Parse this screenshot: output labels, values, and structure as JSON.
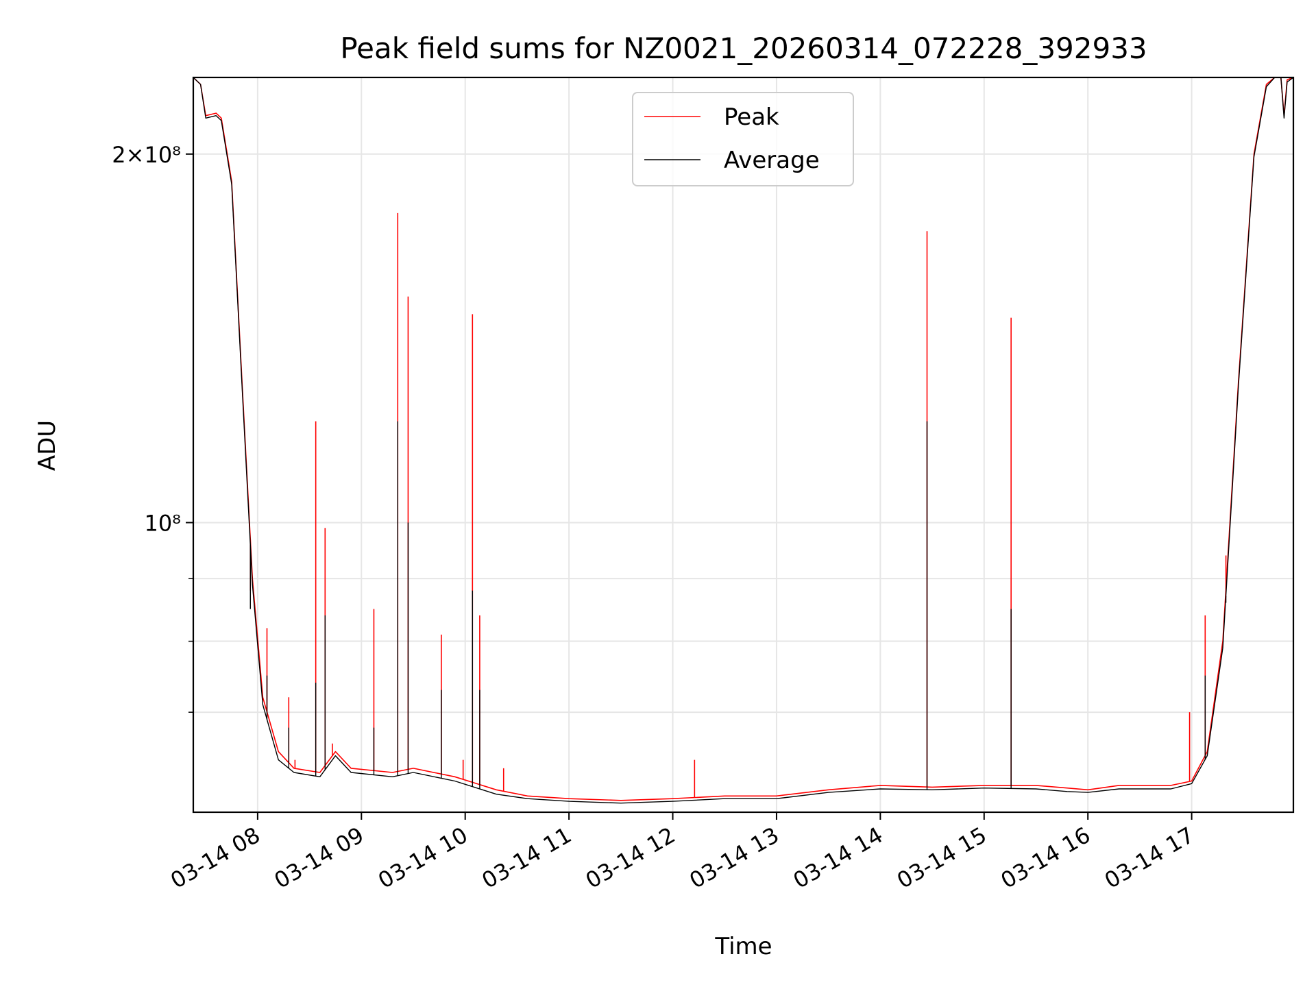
{
  "chart_data": {
    "type": "line",
    "title": "Peak field sums for NZ0021_20260314_072228_392933",
    "xlabel": "Time",
    "ylabel": "ADU",
    "y_scale": "log",
    "xlim_hours": [
      7.38,
      17.98
    ],
    "ylim": [
      58000000,
      231000000
    ],
    "grid": true,
    "legend_position": "upper center",
    "x_ticks": [
      {
        "hour": 8,
        "label": "03-14 08"
      },
      {
        "hour": 9,
        "label": "03-14 09"
      },
      {
        "hour": 10,
        "label": "03-14 10"
      },
      {
        "hour": 11,
        "label": "03-14 11"
      },
      {
        "hour": 12,
        "label": "03-14 12"
      },
      {
        "hour": 13,
        "label": "03-14 13"
      },
      {
        "hour": 14,
        "label": "03-14 14"
      },
      {
        "hour": 15,
        "label": "03-14 15"
      },
      {
        "hour": 16,
        "label": "03-14 16"
      },
      {
        "hour": 17,
        "label": "03-14 17"
      }
    ],
    "y_ticks_major": [
      {
        "value": 200000000,
        "label": "2×10⁸"
      },
      {
        "value": 100000000,
        "label": "10⁸"
      }
    ],
    "y_ticks_minor": [
      70000000,
      80000000,
      90000000
    ],
    "series": [
      {
        "name": "Peak",
        "color": "#ff0000",
        "baseline": [
          [
            7.38,
            231000000
          ],
          [
            7.45,
            228000000
          ],
          [
            7.5,
            215000000
          ],
          [
            7.6,
            216000000
          ],
          [
            7.65,
            214000000
          ],
          [
            7.75,
            190000000
          ],
          [
            7.85,
            130000000
          ],
          [
            7.95,
            90000000
          ],
          [
            8.05,
            72000000
          ],
          [
            8.2,
            65000000
          ],
          [
            8.35,
            63000000
          ],
          [
            8.6,
            62500000
          ],
          [
            8.75,
            65000000
          ],
          [
            8.9,
            63000000
          ],
          [
            9.3,
            62500000
          ],
          [
            9.5,
            63000000
          ],
          [
            9.9,
            62000000
          ],
          [
            10.3,
            60500000
          ],
          [
            10.6,
            59800000
          ],
          [
            11.0,
            59500000
          ],
          [
            11.5,
            59300000
          ],
          [
            12.0,
            59500000
          ],
          [
            12.5,
            59800000
          ],
          [
            13.0,
            59800000
          ],
          [
            13.5,
            60500000
          ],
          [
            14.0,
            61000000
          ],
          [
            14.5,
            60800000
          ],
          [
            15.0,
            61000000
          ],
          [
            15.5,
            61000000
          ],
          [
            15.8,
            60700000
          ],
          [
            16.0,
            60500000
          ],
          [
            16.3,
            61000000
          ],
          [
            16.8,
            61000000
          ],
          [
            17.0,
            61500000
          ],
          [
            17.15,
            65000000
          ],
          [
            17.3,
            80000000
          ],
          [
            17.45,
            130000000
          ],
          [
            17.6,
            200000000
          ],
          [
            17.72,
            228000000
          ],
          [
            17.8,
            231000000
          ],
          [
            17.86,
            231000000
          ],
          [
            17.89,
            215000000
          ],
          [
            17.92,
            230000000
          ],
          [
            17.98,
            231000000
          ]
        ],
        "spikes": [
          [
            7.93,
            88000000
          ],
          [
            8.09,
            82000000
          ],
          [
            8.3,
            72000000
          ],
          [
            8.36,
            64000000
          ],
          [
            8.56,
            121000000
          ],
          [
            8.65,
            99000000
          ],
          [
            8.72,
            66000000
          ],
          [
            9.12,
            85000000
          ],
          [
            9.35,
            179000000
          ],
          [
            9.45,
            153000000
          ],
          [
            9.77,
            81000000
          ],
          [
            9.98,
            64000000
          ],
          [
            10.07,
            148000000
          ],
          [
            10.14,
            84000000
          ],
          [
            10.37,
            63000000
          ],
          [
            12.21,
            64000000
          ],
          [
            14.45,
            173000000
          ],
          [
            15.26,
            147000000
          ],
          [
            16.98,
            70000000
          ],
          [
            17.13,
            84000000
          ],
          [
            17.33,
            94000000
          ]
        ]
      },
      {
        "name": "Average",
        "color": "#000000",
        "baseline": [
          [
            7.38,
            231000000
          ],
          [
            7.45,
            228000000
          ],
          [
            7.5,
            214000000
          ],
          [
            7.6,
            215000000
          ],
          [
            7.65,
            213000000
          ],
          [
            7.75,
            189000000
          ],
          [
            7.85,
            129000000
          ],
          [
            7.95,
            89000000
          ],
          [
            8.05,
            71000000
          ],
          [
            8.2,
            64000000
          ],
          [
            8.35,
            62500000
          ],
          [
            8.6,
            62000000
          ],
          [
            8.75,
            64500000
          ],
          [
            8.9,
            62500000
          ],
          [
            9.3,
            62000000
          ],
          [
            9.5,
            62500000
          ],
          [
            9.9,
            61500000
          ],
          [
            10.3,
            60000000
          ],
          [
            10.6,
            59500000
          ],
          [
            11.0,
            59200000
          ],
          [
            11.5,
            59000000
          ],
          [
            12.0,
            59200000
          ],
          [
            12.5,
            59500000
          ],
          [
            13.0,
            59500000
          ],
          [
            13.5,
            60200000
          ],
          [
            14.0,
            60600000
          ],
          [
            14.5,
            60500000
          ],
          [
            15.0,
            60700000
          ],
          [
            15.5,
            60600000
          ],
          [
            15.8,
            60300000
          ],
          [
            16.0,
            60200000
          ],
          [
            16.3,
            60600000
          ],
          [
            16.8,
            60600000
          ],
          [
            17.0,
            61200000
          ],
          [
            17.15,
            64500000
          ],
          [
            17.3,
            79000000
          ],
          [
            17.45,
            129000000
          ],
          [
            17.6,
            199000000
          ],
          [
            17.72,
            227000000
          ],
          [
            17.8,
            231000000
          ],
          [
            17.86,
            231000000
          ],
          [
            17.89,
            214000000
          ],
          [
            17.92,
            229000000
          ],
          [
            17.98,
            231000000
          ]
        ],
        "spikes": [
          [
            7.93,
            85000000
          ],
          [
            8.09,
            75000000
          ],
          [
            8.3,
            68000000
          ],
          [
            8.56,
            74000000
          ],
          [
            8.65,
            84000000
          ],
          [
            9.12,
            68000000
          ],
          [
            9.35,
            121000000
          ],
          [
            9.45,
            100000000
          ],
          [
            9.77,
            73000000
          ],
          [
            10.07,
            88000000
          ],
          [
            10.14,
            73000000
          ],
          [
            14.45,
            121000000
          ],
          [
            15.26,
            85000000
          ],
          [
            17.13,
            75000000
          ],
          [
            17.33,
            86000000
          ]
        ]
      }
    ]
  }
}
